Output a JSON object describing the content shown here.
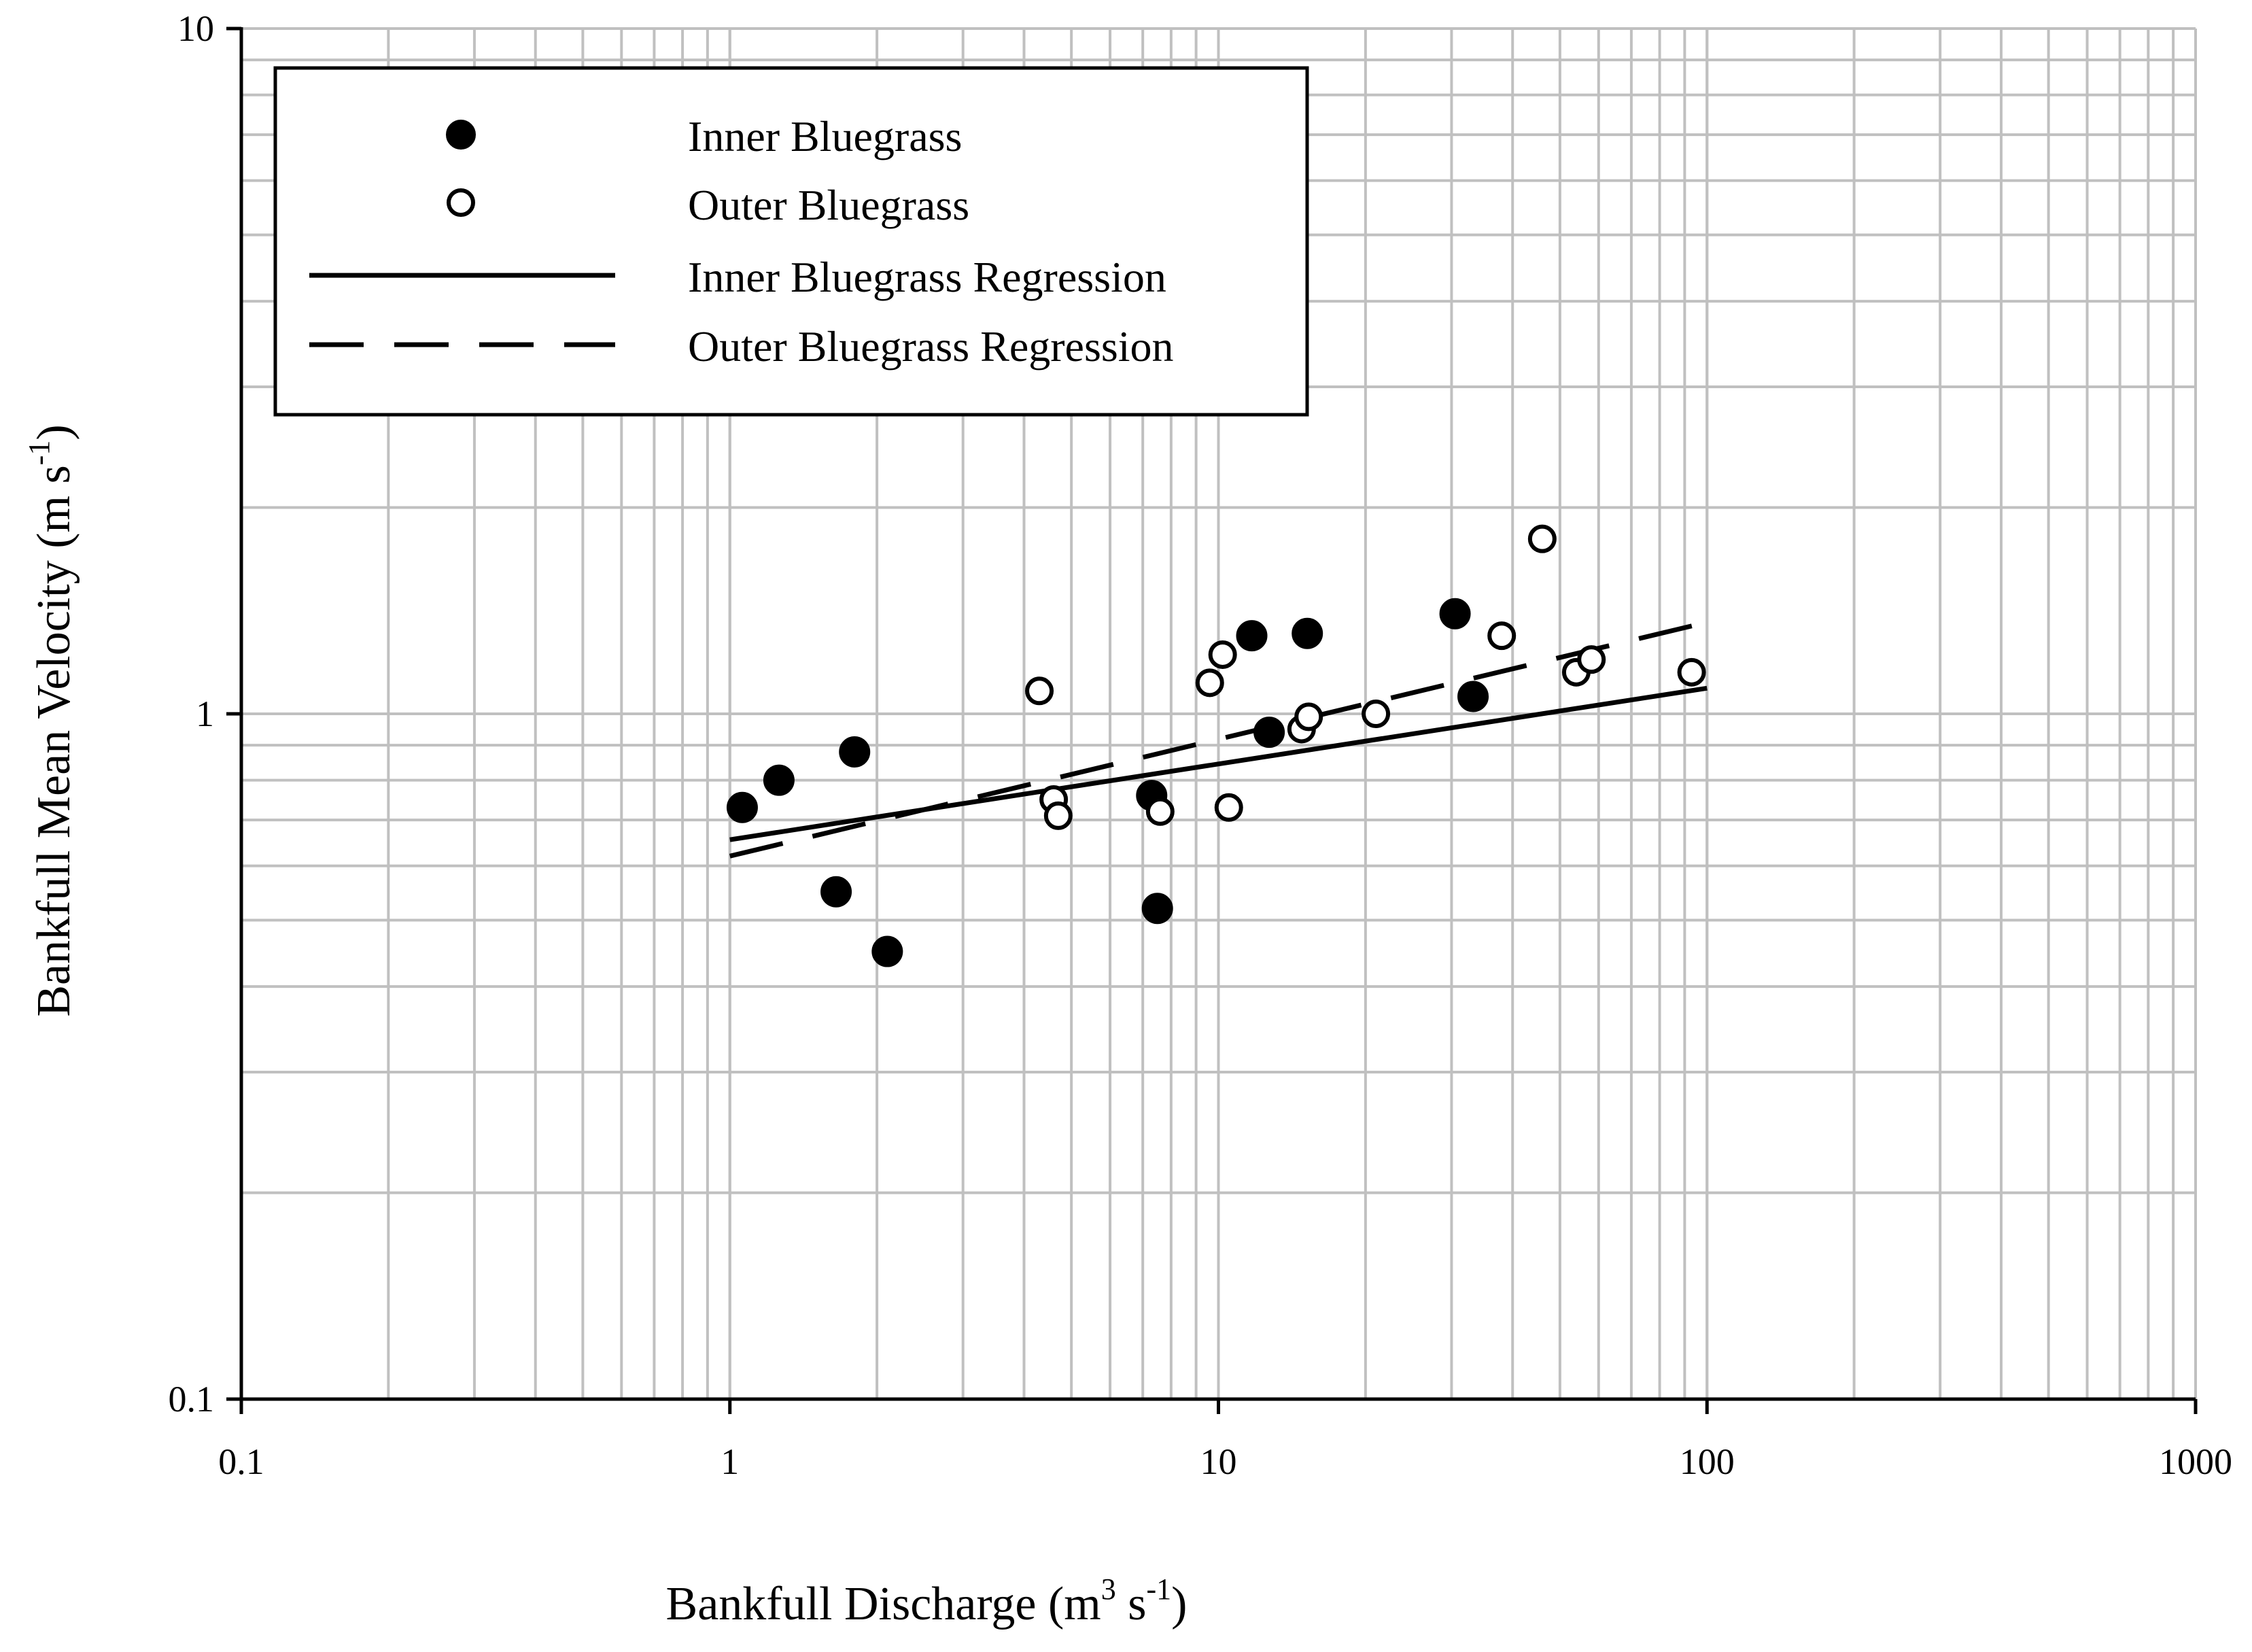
{
  "chart_data": {
    "type": "scatter",
    "xscale": "log",
    "yscale": "log",
    "xlim": [
      0.1,
      1000
    ],
    "ylim": [
      0.1,
      10
    ],
    "grid": true,
    "legend_position": "top-left",
    "xlabel": {
      "main": "Bankfull Discharge (m",
      "sup1": "3",
      "mid": " s",
      "sup2": "-1",
      "end": ")"
    },
    "ylabel": {
      "main": "Bankfull Mean Velocity (m s",
      "sup": "-1",
      "end": ")"
    },
    "x_ticks": [
      {
        "value": 0.1,
        "label": "0.1"
      },
      {
        "value": 1,
        "label": "1"
      },
      {
        "value": 10,
        "label": "10"
      },
      {
        "value": 100,
        "label": "100"
      },
      {
        "value": 1000,
        "label": "1000"
      }
    ],
    "y_ticks": [
      {
        "value": 0.1,
        "label": "0.1"
      },
      {
        "value": 1,
        "label": "1"
      },
      {
        "value": 10,
        "label": "10"
      }
    ],
    "series": [
      {
        "name": "Inner Bluegrass",
        "kind": "points",
        "marker": "filled-circle",
        "points": [
          [
            1.06,
            0.73
          ],
          [
            1.26,
            0.8
          ],
          [
            1.8,
            0.88
          ],
          [
            1.65,
            0.55
          ],
          [
            2.1,
            0.45
          ],
          [
            7.3,
            0.76
          ],
          [
            7.5,
            0.52
          ],
          [
            11.7,
            1.3
          ],
          [
            12.7,
            0.94
          ],
          [
            15.2,
            1.31
          ],
          [
            30.5,
            1.4
          ],
          [
            33.2,
            1.06
          ]
        ]
      },
      {
        "name": "Outer Bluegrass",
        "kind": "points",
        "marker": "open-circle",
        "points": [
          [
            4.3,
            1.08
          ],
          [
            4.6,
            0.75
          ],
          [
            4.7,
            0.71
          ],
          [
            7.6,
            0.72
          ],
          [
            9.6,
            1.11
          ],
          [
            10.2,
            1.22
          ],
          [
            10.5,
            0.73
          ],
          [
            14.8,
            0.95
          ],
          [
            15.3,
            0.99
          ],
          [
            21.0,
            1.0
          ],
          [
            38.0,
            1.3
          ],
          [
            46.0,
            1.8
          ],
          [
            54.0,
            1.15
          ],
          [
            58.0,
            1.2
          ],
          [
            93.0,
            1.15
          ]
        ]
      },
      {
        "name": "Inner Bluegrass Regression",
        "kind": "line",
        "dash": "solid",
        "points": [
          [
            1.0,
            0.655
          ],
          [
            100,
            1.09
          ]
        ]
      },
      {
        "name": "Outer Bluegrass Regression",
        "kind": "line",
        "dash": "dashed",
        "points": [
          [
            1.0,
            0.62
          ],
          [
            100,
            1.36
          ]
        ]
      }
    ]
  }
}
